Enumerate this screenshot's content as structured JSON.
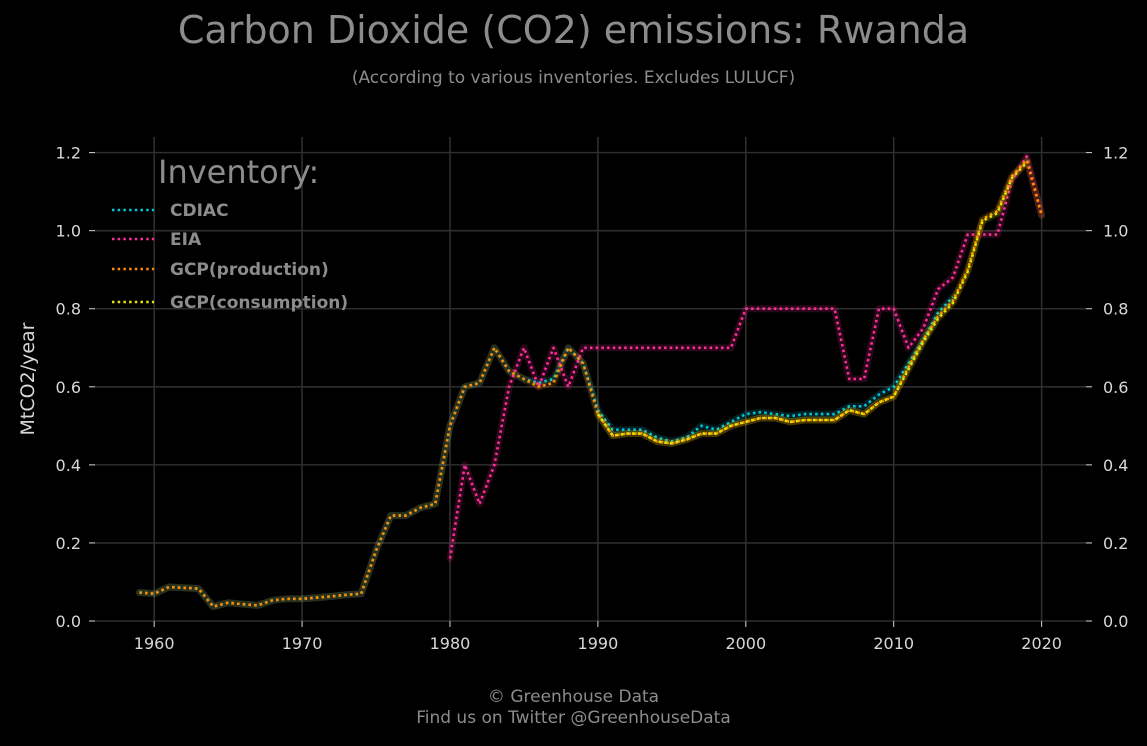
{
  "chart_data": {
    "type": "line",
    "title": "Carbon Dioxide (CO2) emissions: Rwanda",
    "subtitle": "(According to various inventories. Excludes LULUCF)",
    "ylabel": "MtCO2/year",
    "xlabel": "",
    "xlim": [
      1956,
      2023
    ],
    "ylim": [
      0,
      1.24
    ],
    "xticks": [
      "1960",
      "1970",
      "1980",
      "1990",
      "2000",
      "2010",
      "2020"
    ],
    "yticks": [
      "0.0",
      "0.2",
      "0.4",
      "0.6",
      "0.8",
      "1.0",
      "1.2"
    ],
    "grid": true,
    "legend": {
      "title": "Inventory:",
      "placement": "top-left"
    },
    "series": [
      {
        "name": "CDIAC",
        "color": "#00c8d7",
        "x": [
          1959,
          1960,
          1961,
          1962,
          1963,
          1964,
          1965,
          1966,
          1967,
          1968,
          1969,
          1970,
          1971,
          1972,
          1973,
          1974,
          1975,
          1976,
          1977,
          1978,
          1979,
          1980,
          1981,
          1982,
          1983,
          1984,
          1985,
          1986,
          1987,
          1988,
          1989,
          1990,
          1991,
          1992,
          1993,
          1994,
          1995,
          1996,
          1997,
          1998,
          1999,
          2000,
          2001,
          2002,
          2003,
          2004,
          2005,
          2006,
          2007,
          2008,
          2009,
          2010,
          2011,
          2012,
          2013,
          2014
        ],
        "y": [
          0.073,
          0.07,
          0.087,
          0.085,
          0.083,
          0.037,
          0.047,
          0.043,
          0.04,
          0.053,
          0.057,
          0.057,
          0.06,
          0.063,
          0.067,
          0.07,
          0.18,
          0.27,
          0.27,
          0.29,
          0.3,
          0.5,
          0.6,
          0.61,
          0.7,
          0.64,
          0.62,
          0.61,
          0.62,
          0.7,
          0.66,
          0.54,
          0.49,
          0.49,
          0.49,
          0.47,
          0.46,
          0.47,
          0.5,
          0.49,
          0.51,
          0.53,
          0.535,
          0.53,
          0.525,
          0.53,
          0.53,
          0.53,
          0.55,
          0.55,
          0.58,
          0.6,
          0.66,
          0.72,
          0.79,
          0.83
        ]
      },
      {
        "name": "EIA",
        "color": "#ff2d9a",
        "x": [
          1980,
          1981,
          1982,
          1983,
          1984,
          1985,
          1986,
          1987,
          1988,
          1989,
          1990,
          1991,
          1992,
          1993,
          1994,
          1995,
          1996,
          1997,
          1998,
          1999,
          2000,
          2001,
          2002,
          2003,
          2004,
          2005,
          2006,
          2007,
          2008,
          2009,
          2010,
          2011,
          2012,
          2013,
          2014,
          2015,
          2016,
          2017,
          2018,
          2019,
          2020
        ],
        "y": [
          0.16,
          0.4,
          0.3,
          0.4,
          0.6,
          0.7,
          0.6,
          0.7,
          0.6,
          0.7,
          0.7,
          0.7,
          0.7,
          0.7,
          0.7,
          0.7,
          0.7,
          0.7,
          0.7,
          0.7,
          0.8,
          0.8,
          0.8,
          0.8,
          0.8,
          0.8,
          0.8,
          0.62,
          0.62,
          0.8,
          0.8,
          0.7,
          0.75,
          0.85,
          0.88,
          0.99,
          0.99,
          0.99,
          1.13,
          1.19,
          1.04
        ]
      },
      {
        "name": "GCP(production)",
        "color": "#ff8c00",
        "x": [
          1959,
          1960,
          1961,
          1962,
          1963,
          1964,
          1965,
          1966,
          1967,
          1968,
          1969,
          1970,
          1971,
          1972,
          1973,
          1974,
          1975,
          1976,
          1977,
          1978,
          1979,
          1980,
          1981,
          1982,
          1983,
          1984,
          1985,
          1986,
          1987,
          1988,
          1989,
          1990,
          1991,
          1992,
          1993,
          1994,
          1995,
          1996,
          1997,
          1998,
          1999,
          2000,
          2001,
          2002,
          2003,
          2004,
          2005,
          2006,
          2007,
          2008,
          2009,
          2010,
          2011,
          2012,
          2013,
          2014,
          2015,
          2016,
          2017,
          2018,
          2019,
          2020
        ],
        "y": [
          0.073,
          0.07,
          0.087,
          0.085,
          0.083,
          0.037,
          0.047,
          0.043,
          0.04,
          0.053,
          0.057,
          0.057,
          0.06,
          0.063,
          0.067,
          0.07,
          0.18,
          0.27,
          0.27,
          0.29,
          0.3,
          0.5,
          0.6,
          0.61,
          0.7,
          0.64,
          0.62,
          0.6,
          0.61,
          0.7,
          0.66,
          0.53,
          0.475,
          0.48,
          0.48,
          0.46,
          0.455,
          0.465,
          0.48,
          0.48,
          0.5,
          0.51,
          0.52,
          0.52,
          0.51,
          0.515,
          0.515,
          0.515,
          0.54,
          0.53,
          0.56,
          0.575,
          0.65,
          0.72,
          0.78,
          0.82,
          0.9,
          1.03,
          1.05,
          1.14,
          1.18,
          1.04
        ]
      },
      {
        "name": "GCP(consumption)",
        "color": "#e5e500",
        "x": [
          1990,
          1991,
          1992,
          1993,
          1994,
          1995,
          1996,
          1997,
          1998,
          1999,
          2000,
          2001,
          2002,
          2003,
          2004,
          2005,
          2006,
          2007,
          2008,
          2009,
          2010,
          2011,
          2012,
          2013,
          2014,
          2015,
          2016,
          2017,
          2018,
          2019
        ],
        "y": [
          0.53,
          0.475,
          0.48,
          0.48,
          0.46,
          0.455,
          0.465,
          0.48,
          0.48,
          0.5,
          0.51,
          0.52,
          0.52,
          0.51,
          0.515,
          0.515,
          0.515,
          0.54,
          0.53,
          0.56,
          0.575,
          0.645,
          0.715,
          0.775,
          0.815,
          0.895,
          1.025,
          1.045,
          1.135,
          1.175
        ]
      }
    ]
  },
  "footer": {
    "line1": "© Greenhouse Data",
    "line2": "Find us on Twitter @GreenhouseData"
  }
}
